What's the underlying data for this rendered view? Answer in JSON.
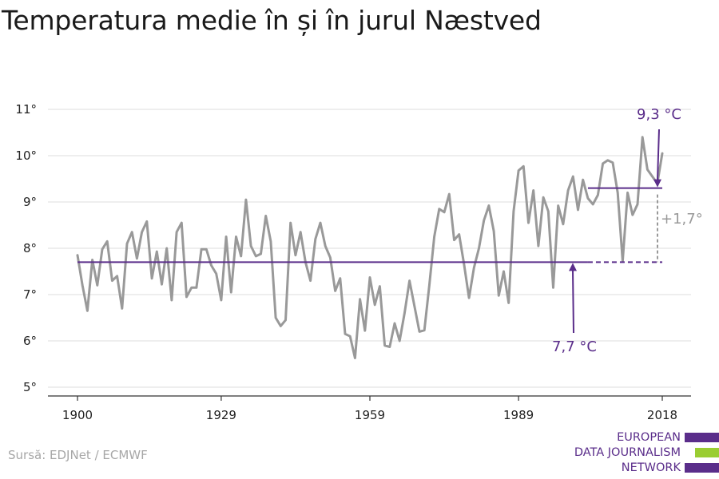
{
  "title": "Temperatura medie în și în jurul Næstved",
  "source": "Sursă: EDJNet / ECMWF",
  "logo": {
    "lines": [
      "EUROPEAN",
      "DATA JOURNALISM",
      "NETWORK"
    ],
    "colors": [
      "#5a2d8a",
      "#9acd32",
      "#5a2d8a"
    ]
  },
  "colors": {
    "series": "#999999",
    "reference": "#5a2d8a",
    "grid": "#dddddd",
    "axis": "#333333",
    "diff": "#999999"
  },
  "chart_data": {
    "type": "line",
    "xlim": [
      1900,
      2018
    ],
    "ylim": [
      5,
      11
    ],
    "yticks": [
      5,
      6,
      7,
      8,
      9,
      10,
      11
    ],
    "ytick_labels": [
      "5°",
      "6°",
      "7°",
      "8°",
      "9°",
      "10°",
      "11°"
    ],
    "xticks": [
      1900,
      1929,
      1959,
      1989,
      2018
    ],
    "xtick_labels": [
      "1900",
      "1929",
      "1959",
      "1989",
      "2018"
    ],
    "grid": true,
    "series": [
      {
        "x": [
          1900,
          1901,
          1902,
          1903,
          1904,
          1905,
          1906,
          1907,
          1908,
          1909,
          1910,
          1911,
          1912,
          1913,
          1914,
          1915,
          1916,
          1917,
          1918,
          1919,
          1920,
          1921,
          1922,
          1923,
          1924,
          1925,
          1926,
          1927,
          1928,
          1929,
          1930,
          1931,
          1932,
          1933,
          1934,
          1935,
          1936,
          1937,
          1938,
          1939,
          1940,
          1941,
          1942,
          1943,
          1944,
          1945,
          1946,
          1947,
          1948,
          1949,
          1950,
          1951,
          1952,
          1953,
          1954,
          1955,
          1956,
          1957,
          1958,
          1959,
          1960,
          1961,
          1962,
          1963,
          1964,
          1965,
          1966,
          1967,
          1968,
          1969,
          1970,
          1971,
          1972,
          1973,
          1974,
          1975,
          1976,
          1977,
          1978,
          1979,
          1980,
          1981,
          1982,
          1983,
          1984,
          1985,
          1986,
          1987,
          1988,
          1989,
          1990,
          1991,
          1992,
          1993,
          1994,
          1995,
          1996,
          1997,
          1998,
          1999,
          2000,
          2001,
          2002,
          2003,
          2004,
          2005,
          2006,
          2007,
          2008,
          2009,
          2010,
          2011,
          2012,
          2013,
          2014,
          2015,
          2016,
          2017,
          2018
        ],
        "values": [
          7.85,
          7.2,
          6.65,
          7.75,
          7.2,
          7.98,
          8.15,
          7.3,
          7.4,
          6.7,
          8.1,
          8.35,
          7.78,
          8.35,
          8.58,
          7.35,
          7.93,
          7.22,
          8.0,
          6.88,
          8.35,
          8.55,
          6.95,
          7.15,
          7.15,
          7.98,
          7.98,
          7.63,
          7.45,
          6.88,
          8.25,
          7.05,
          8.25,
          7.83,
          9.05,
          8.05,
          7.83,
          7.88,
          8.7,
          8.15,
          6.5,
          6.32,
          6.45,
          8.55,
          7.85,
          8.35,
          7.7,
          7.3,
          8.2,
          8.55,
          8.05,
          7.8,
          7.08,
          7.35,
          6.15,
          6.1,
          5.63,
          6.9,
          6.22,
          7.37,
          6.78,
          7.18,
          5.9,
          5.87,
          6.38,
          6.0,
          6.6,
          7.3,
          6.75,
          6.2,
          6.23,
          7.2,
          8.25,
          8.85,
          8.78,
          9.17,
          8.18,
          8.3,
          7.65,
          6.93,
          7.58,
          8.0,
          8.6,
          8.92,
          8.37,
          6.98,
          7.5,
          6.82,
          8.8,
          9.68,
          9.77,
          8.55,
          9.25,
          8.05,
          9.1,
          8.8,
          7.15,
          8.92,
          8.52,
          9.25,
          9.55,
          8.83,
          9.48,
          9.08,
          8.95,
          9.15,
          9.83,
          9.9,
          9.85,
          9.2,
          7.72,
          9.2,
          8.72,
          8.95,
          10.4,
          9.7,
          9.55,
          9.4,
          10.05
        ]
      }
    ],
    "reference_lines": [
      {
        "value": 7.7,
        "from": 1900,
        "to": 2003,
        "dashed_to": 2018
      },
      {
        "value": 9.3,
        "from": 2003,
        "to": 2018
      }
    ],
    "annotations": {
      "old_mean_label": "7,7 °C",
      "new_mean_label": "9,3 °C",
      "difference_label": "+1,7°"
    }
  }
}
